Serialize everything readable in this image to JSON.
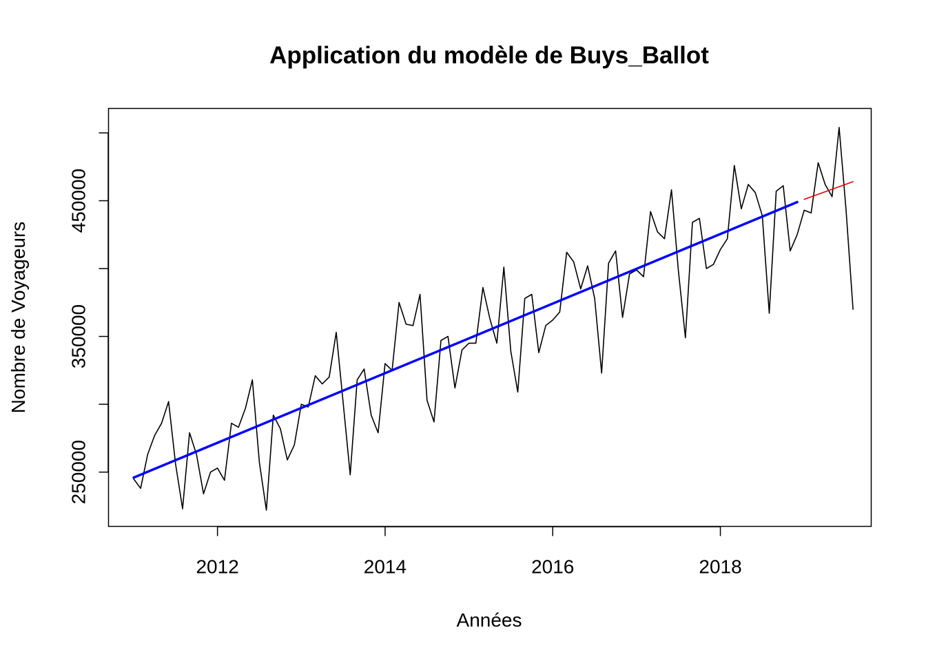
{
  "chart_data": {
    "type": "line",
    "title": "Application du modèle de Buys_Ballot",
    "xlabel": "Années",
    "ylabel": "Nombre de Voyageurs",
    "xlim": [
      2010.7,
      2019.8
    ],
    "ylim": [
      210000,
      518000
    ],
    "x_ticks": [
      2012,
      2014,
      2016,
      2018
    ],
    "y_ticks": [
      250000,
      300000,
      350000,
      400000,
      450000,
      500000
    ],
    "y_tick_labels": [
      "250000",
      "",
      "350000",
      "",
      "450000",
      ""
    ],
    "grid": false,
    "legend": "none",
    "series": [
      {
        "color": "#000000",
        "width": 1.6,
        "x_start": 2011.0,
        "x_step": 0.0833333,
        "values": [
          245000,
          238000,
          263000,
          277000,
          286000,
          302000,
          256000,
          223000,
          279000,
          263000,
          234000,
          250000,
          253000,
          244000,
          286000,
          283000,
          297000,
          318000,
          257000,
          222000,
          292000,
          282000,
          259000,
          270000,
          300000,
          298000,
          321000,
          315000,
          320000,
          353000,
          301000,
          248000,
          318000,
          326000,
          292000,
          279000,
          330000,
          325000,
          375000,
          359000,
          358000,
          381000,
          303000,
          287000,
          347000,
          350000,
          312000,
          340000,
          345000,
          345000,
          386000,
          363000,
          345000,
          401000,
          339000,
          309000,
          378000,
          381000,
          338000,
          358000,
          362000,
          368000,
          412000,
          405000,
          385000,
          402000,
          378000,
          323000,
          404000,
          413000,
          364000,
          396000,
          399000,
          394000,
          442000,
          427000,
          422000,
          458000,
          398000,
          349000,
          434000,
          437000,
          400000,
          403000,
          414000,
          422000,
          476000,
          444000,
          462000,
          456000,
          439000,
          367000,
          457000,
          461000,
          413000,
          425000,
          443000,
          441000,
          478000,
          462000,
          453000,
          504000,
          443000,
          370000
        ]
      },
      {
        "color": "#0000ff",
        "width": 3.5,
        "x": [
          2011.0,
          2018.917
        ],
        "y": [
          246000,
          449000
        ]
      },
      {
        "color": "#e00000",
        "width": 1.6,
        "x": [
          2019.0,
          2019.583
        ],
        "y": [
          451000,
          464000
        ]
      }
    ]
  }
}
